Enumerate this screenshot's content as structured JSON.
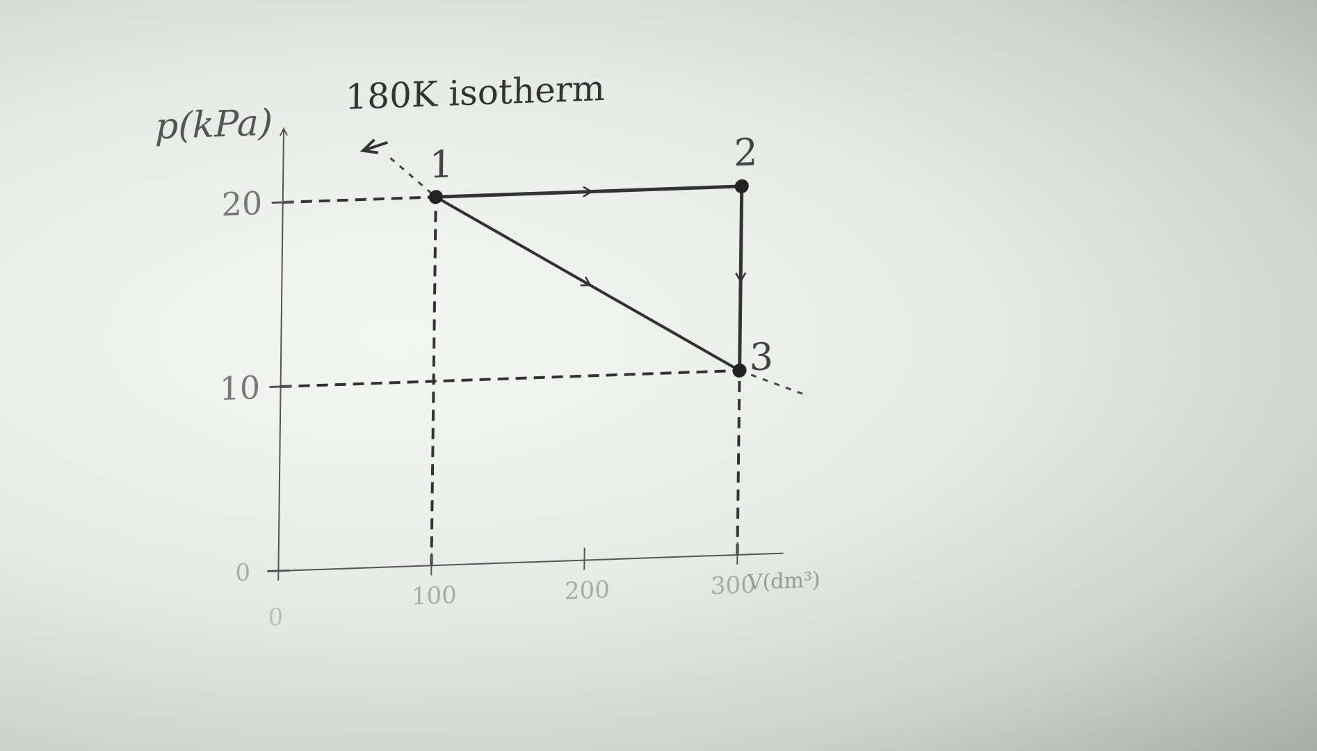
{
  "chart_data": {
    "type": "line",
    "ylabel": "p(kPa)",
    "xlabel": "V(dm³)",
    "x_ticks": [
      0,
      100,
      200,
      300
    ],
    "y_ticks": [
      0,
      10,
      20
    ],
    "y_zero_label": "0",
    "x_zero_label": "0",
    "xlim": [
      0,
      330
    ],
    "ylim": [
      0,
      24
    ],
    "points": [
      {
        "label": "1",
        "x": 100,
        "y": 20
      },
      {
        "label": "2",
        "x": 300,
        "y": 20
      },
      {
        "label": "3",
        "x": 300,
        "y": 10
      }
    ],
    "segments": [
      {
        "name": "1-2",
        "from": "1",
        "to": "2",
        "style": "solid"
      },
      {
        "name": "2-3",
        "from": "2",
        "to": "3",
        "style": "solid"
      },
      {
        "name": "1-3",
        "from": "1",
        "to": "3",
        "style": "solid"
      }
    ],
    "isotherm": {
      "label": "180K isotherm",
      "x": [
        70,
        100,
        300,
        342
      ],
      "y": [
        22.2,
        20,
        10,
        8.6
      ]
    },
    "guides": [
      {
        "x": [
          0,
          100
        ],
        "y": [
          20,
          20
        ]
      },
      {
        "x": [
          100,
          100
        ],
        "y": [
          0,
          20
        ]
      },
      {
        "x": [
          0,
          300
        ],
        "y": [
          10,
          10
        ]
      },
      {
        "x": [
          300,
          300
        ],
        "y": [
          0,
          10
        ]
      }
    ],
    "grid": false,
    "legend": "none"
  }
}
